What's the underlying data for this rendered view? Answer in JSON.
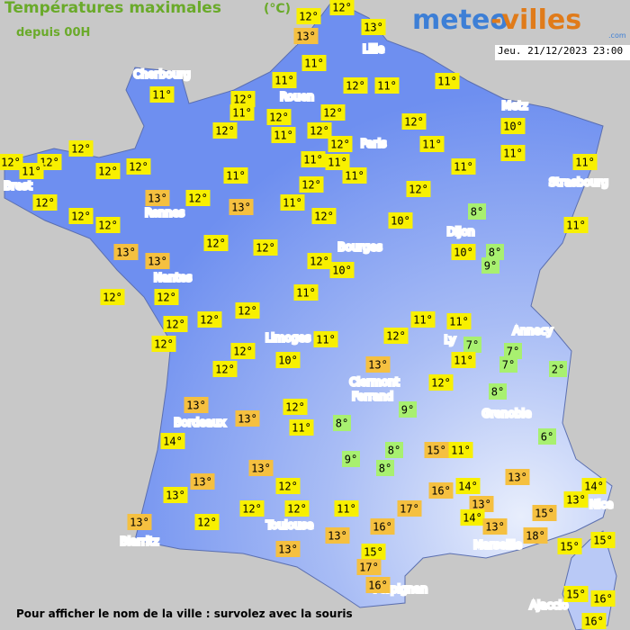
{
  "header": {
    "title": "Températures maximales",
    "unit": "(°C)",
    "subtitle": "depuis 00H",
    "logo_a": "meteo",
    "logo_b": "-villes",
    "logo_sub": ".com",
    "date": "Jeu. 21/12/2023 23:00"
  },
  "cities": [
    "Lille",
    "Cherbourg",
    "Rouen",
    "Paris",
    "Metz",
    "Strasbourg",
    "Brest",
    "Rennes",
    "Dijon",
    "Bourges",
    "Nantes",
    "Annecy",
    "Limoges",
    "Ly",
    "Clermont",
    "Ferrand",
    "Grenoble",
    "Bordeaux",
    "Nice",
    "Toulouse",
    "Marseille",
    "Biarritz",
    "Perpignan",
    "Ajaccio"
  ],
  "temperatures": [
    "12°",
    "12°",
    "13°",
    "13°",
    "11°",
    "11°",
    "12°",
    "11°",
    "11°",
    "11°",
    "12°",
    "11°",
    "12°",
    "12°",
    "12°",
    "11°",
    "12°",
    "12°",
    "10°",
    "12°",
    "11°",
    "11°",
    "12°",
    "12°",
    "12°",
    "11°",
    "12°",
    "12°",
    "11°",
    "11°",
    "11°",
    "11°",
    "11°",
    "11°",
    "12°",
    "12°",
    "12°",
    "13°",
    "12°",
    "13°",
    "11°",
    "12°",
    "12°",
    "12°",
    "10°",
    "8°",
    "11°",
    "13°",
    "13°",
    "12°",
    "12°",
    "12°",
    "10°",
    "10°",
    "8°",
    "9°",
    "12°",
    "12°",
    "11°",
    "12°",
    "12°",
    "12°",
    "11°",
    "11°",
    "12°",
    "11°",
    "12°",
    "7°",
    "7°",
    "12°",
    "10°",
    "11°",
    "7°",
    "12°",
    "13°",
    "2°",
    "12°",
    "8°",
    "12°",
    "13°",
    "9°",
    "8°",
    "11°",
    "13°",
    "6°",
    "14°",
    "8°",
    "15°",
    "11°",
    "9°",
    "8°",
    "13°",
    "13°",
    "13°",
    "16°",
    "14°",
    "12°",
    "13°",
    "14°",
    "13°",
    "13°",
    "12°",
    "12°",
    "11°",
    "17°",
    "14°",
    "15°",
    "13°",
    "12°",
    "16°",
    "13°",
    "18°",
    "13°",
    "15°",
    "15°",
    "13°",
    "15°",
    "17°",
    "16°",
    "15°",
    "16°",
    "16°"
  ],
  "footer": "Pour afficher le nom de la ville : survolez avec la souris"
}
